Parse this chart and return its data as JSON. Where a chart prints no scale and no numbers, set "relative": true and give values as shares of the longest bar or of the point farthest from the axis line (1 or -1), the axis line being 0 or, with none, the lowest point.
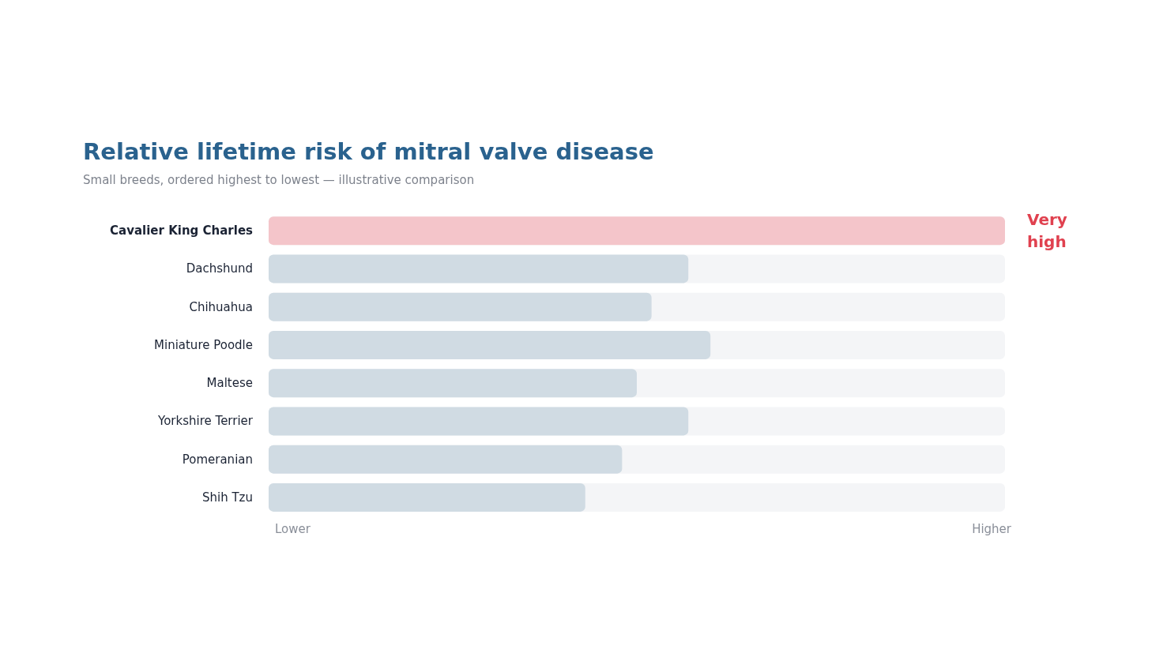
{
  "chart_data": {
    "type": "bar",
    "orientation": "horizontal",
    "relative": true,
    "title": "Relative lifetime risk of mitral valve disease",
    "subtitle": "Small breeds, ordered highest to lowest — illustrative comparison",
    "categories": [
      "Cavalier King Charles",
      "Dachshund",
      "Chihuahua",
      "Miniature Poodle",
      "Maltese",
      "Yorkshire Terrier",
      "Pomeranian",
      "Shih Tzu"
    ],
    "values": [
      1,
      0.57,
      0.52,
      0.6,
      0.5,
      0.57,
      0.48,
      0.43
    ],
    "colors": [
      "#f4c5ca",
      "#d0dbe3",
      "#d0dbe3",
      "#d0dbe3",
      "#d0dbe3",
      "#d0dbe3",
      "#d0dbe3",
      "#d0dbe3"
    ],
    "annotations": [
      "Very high",
      "Lower",
      "Higher"
    ]
  }
}
